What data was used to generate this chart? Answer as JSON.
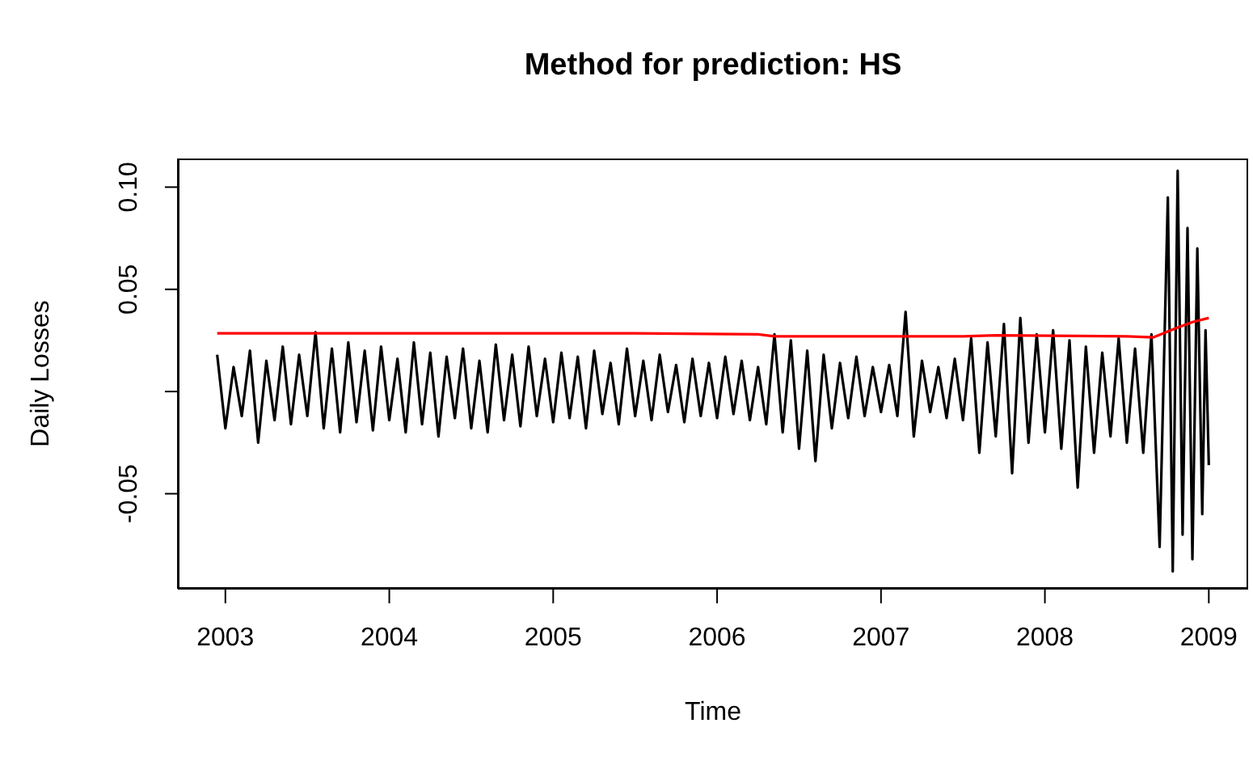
{
  "chart_data": {
    "type": "line",
    "title": "Method for prediction: HS",
    "xlabel": "Time",
    "ylabel": "Daily Losses",
    "xlim": [
      2002.71,
      2009.24
    ],
    "xticks": [
      2003,
      2004,
      2005,
      2006,
      2007,
      2008,
      2009
    ],
    "ylim": [
      -0.0965,
      0.114
    ],
    "yticks": [
      -0.05,
      {
        "value": 0,
        "label": null
      },
      0.05,
      {
        "value": 0.1,
        "label": "0.10"
      }
    ],
    "series": [
      {
        "color": "#000000",
        "x": [
          2002.95,
          2003.0,
          2003.05,
          2003.1,
          2003.15,
          2003.2,
          2003.25,
          2003.3,
          2003.35,
          2003.4,
          2003.45,
          2003.5,
          2003.55,
          2003.6,
          2003.65,
          2003.7,
          2003.75,
          2003.8,
          2003.85,
          2003.9,
          2003.95,
          2004.0,
          2004.05,
          2004.1,
          2004.15,
          2004.2,
          2004.25,
          2004.3,
          2004.35,
          2004.4,
          2004.45,
          2004.5,
          2004.55,
          2004.6,
          2004.65,
          2004.7,
          2004.75,
          2004.8,
          2004.85,
          2004.9,
          2004.95,
          2005.0,
          2005.05,
          2005.1,
          2005.15,
          2005.2,
          2005.25,
          2005.3,
          2005.35,
          2005.4,
          2005.45,
          2005.5,
          2005.55,
          2005.6,
          2005.65,
          2005.7,
          2005.75,
          2005.8,
          2005.85,
          2005.9,
          2005.95,
          2006.0,
          2006.05,
          2006.1,
          2006.15,
          2006.2,
          2006.25,
          2006.3,
          2006.35,
          2006.4,
          2006.45,
          2006.5,
          2006.55,
          2006.6,
          2006.65,
          2006.7,
          2006.75,
          2006.8,
          2006.85,
          2006.9,
          2006.95,
          2007.0,
          2007.05,
          2007.1,
          2007.15,
          2007.2,
          2007.25,
          2007.3,
          2007.35,
          2007.4,
          2007.45,
          2007.5,
          2007.55,
          2007.6,
          2007.65,
          2007.7,
          2007.75,
          2007.8,
          2007.85,
          2007.9,
          2007.95,
          2008.0,
          2008.05,
          2008.1,
          2008.15,
          2008.2,
          2008.25,
          2008.3,
          2008.35,
          2008.4,
          2008.45,
          2008.5,
          2008.55,
          2008.6,
          2008.65,
          2008.7,
          2008.75,
          2008.78,
          2008.81,
          2008.84,
          2008.87,
          2008.9,
          2008.93,
          2008.96,
          2008.98,
          2009.0
        ],
        "values": [
          0.018,
          -0.018,
          0.012,
          -0.012,
          0.02,
          -0.025,
          0.015,
          -0.014,
          0.022,
          -0.016,
          0.018,
          -0.012,
          0.029,
          -0.018,
          0.021,
          -0.02,
          0.024,
          -0.015,
          0.02,
          -0.019,
          0.022,
          -0.014,
          0.016,
          -0.02,
          0.024,
          -0.016,
          0.019,
          -0.022,
          0.017,
          -0.013,
          0.021,
          -0.018,
          0.015,
          -0.02,
          0.023,
          -0.014,
          0.018,
          -0.017,
          0.022,
          -0.012,
          0.016,
          -0.015,
          0.019,
          -0.013,
          0.017,
          -0.018,
          0.02,
          -0.011,
          0.014,
          -0.016,
          0.021,
          -0.012,
          0.015,
          -0.014,
          0.018,
          -0.01,
          0.013,
          -0.015,
          0.016,
          -0.012,
          0.014,
          -0.013,
          0.017,
          -0.011,
          0.015,
          -0.014,
          0.012,
          -0.016,
          0.028,
          -0.02,
          0.025,
          -0.028,
          0.02,
          -0.034,
          0.018,
          -0.018,
          0.014,
          -0.013,
          0.017,
          -0.012,
          0.012,
          -0.01,
          0.013,
          -0.012,
          0.039,
          -0.022,
          0.015,
          -0.01,
          0.012,
          -0.013,
          0.016,
          -0.014,
          0.026,
          -0.03,
          0.024,
          -0.022,
          0.033,
          -0.04,
          0.036,
          -0.025,
          0.028,
          -0.02,
          0.03,
          -0.028,
          0.025,
          -0.047,
          0.022,
          -0.03,
          0.019,
          -0.022,
          0.026,
          -0.025,
          0.021,
          -0.03,
          0.028,
          -0.076,
          0.095,
          -0.088,
          0.108,
          -0.07,
          0.08,
          -0.082,
          0.07,
          -0.06,
          0.03,
          -0.036
        ]
      },
      {
        "color": "#ff0000",
        "x": [
          2002.95,
          2005.5,
          2006.25,
          2006.35,
          2007.5,
          2007.7,
          2008.5,
          2008.66,
          2008.8,
          2008.9,
          2009.0
        ],
        "values": [
          0.0285,
          0.0285,
          0.028,
          0.027,
          0.027,
          0.0275,
          0.027,
          0.0265,
          0.031,
          0.034,
          0.036
        ]
      }
    ]
  }
}
